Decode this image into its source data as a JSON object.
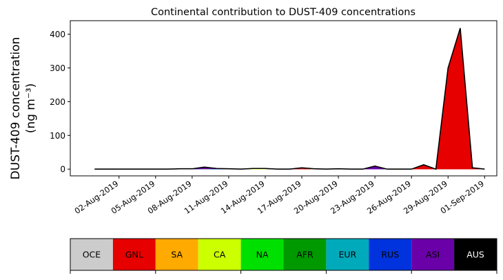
{
  "chart_data": {
    "type": "area",
    "title": "Continental contribution to DUST-409 concentrations",
    "ylabel_line1": "DUST-409 concentration",
    "ylabel_line2": "(ng m⁻³)",
    "xlabel": "",
    "y_range": [
      -20,
      440
    ],
    "x_range": [
      "2019-07-29",
      "2019-09-02"
    ],
    "y_ticks": [
      0,
      100,
      200,
      300,
      400
    ],
    "x_tick_labels": [
      "02-Aug-2019",
      "05-Aug-2019",
      "08-Aug-2019",
      "11-Aug-2019",
      "14-Aug-2019",
      "17-Aug-2019",
      "20-Aug-2019",
      "23-Aug-2019",
      "26-Aug-2019",
      "29-Aug-2019",
      "01-Sep-2019"
    ],
    "x_tick_dates": [
      "2019-08-02",
      "2019-08-05",
      "2019-08-08",
      "2019-08-11",
      "2019-08-14",
      "2019-08-17",
      "2019-08-20",
      "2019-08-23",
      "2019-08-26",
      "2019-08-29",
      "2019-09-01"
    ],
    "grid": false,
    "x": [
      "2019-07-31",
      "2019-08-01",
      "2019-08-02",
      "2019-08-03",
      "2019-08-04",
      "2019-08-05",
      "2019-08-06",
      "2019-08-07",
      "2019-08-08",
      "2019-08-09",
      "2019-08-10",
      "2019-08-11",
      "2019-08-12",
      "2019-08-13",
      "2019-08-14",
      "2019-08-15",
      "2019-08-16",
      "2019-08-17",
      "2019-08-18",
      "2019-08-19",
      "2019-08-20",
      "2019-08-21",
      "2019-08-22",
      "2019-08-23",
      "2019-08-24",
      "2019-08-25",
      "2019-08-26",
      "2019-08-27",
      "2019-08-28",
      "2019-08-29",
      "2019-08-30",
      "2019-08-31",
      "2019-09-01"
    ],
    "series": [
      {
        "name": "OCE",
        "color": "#cccccc",
        "values": [
          0,
          0,
          0,
          0,
          0,
          0,
          0,
          0,
          0,
          0,
          0,
          0,
          0,
          0,
          0,
          0,
          0,
          0,
          0,
          0,
          0,
          0,
          0,
          0,
          0,
          0,
          0,
          0,
          0,
          0,
          0,
          0,
          0
        ]
      },
      {
        "name": "GNL",
        "color": "#e60000",
        "values": [
          0,
          0,
          0,
          0,
          0,
          0,
          0,
          0,
          0,
          1,
          0,
          0,
          0,
          0,
          0,
          0,
          0,
          3,
          0,
          0,
          0,
          0,
          0,
          0,
          0,
          0,
          0,
          12,
          0,
          300,
          418,
          4,
          0
        ]
      },
      {
        "name": "SA",
        "color": "#ffaa00",
        "values": [
          0,
          0,
          0,
          0,
          0,
          0,
          0,
          0,
          0,
          0,
          0,
          0,
          0,
          0,
          0,
          0,
          0,
          0,
          0,
          0,
          0,
          0,
          0,
          0,
          0,
          0,
          0,
          0,
          0,
          0,
          0,
          0,
          0
        ]
      },
      {
        "name": "CA",
        "color": "#ccff00",
        "values": [
          0,
          0,
          0,
          0,
          0,
          0,
          0,
          0,
          0,
          0,
          0,
          0,
          0,
          1,
          1,
          0,
          0,
          0,
          1,
          0,
          1,
          0,
          0,
          0,
          0,
          0,
          0,
          0,
          0,
          0,
          0,
          0,
          0
        ]
      },
      {
        "name": "NA",
        "color": "#00e000",
        "values": [
          0,
          0,
          0,
          0,
          0,
          0,
          0,
          0,
          0,
          0,
          0,
          0,
          0,
          1,
          0,
          0,
          0,
          0,
          0,
          0,
          0,
          0,
          0,
          0,
          0,
          0,
          0,
          0,
          0,
          0,
          0,
          0,
          0
        ]
      },
      {
        "name": "AFR",
        "color": "#009900",
        "values": [
          0,
          0,
          0,
          0,
          0,
          0,
          0,
          0,
          0,
          0,
          0,
          0,
          0,
          0,
          0,
          0,
          0,
          0,
          0,
          0,
          0,
          0,
          0,
          0,
          0,
          0,
          0,
          0,
          0,
          0,
          0,
          0,
          0
        ]
      },
      {
        "name": "EUR",
        "color": "#00aabb",
        "values": [
          0,
          0,
          0,
          0,
          0,
          0,
          0,
          0,
          0,
          0,
          0,
          0,
          0,
          0,
          0,
          0,
          0,
          0,
          0,
          0,
          0,
          0,
          0,
          0,
          0,
          0,
          0,
          0,
          0,
          0,
          0,
          0,
          0
        ]
      },
      {
        "name": "RUS",
        "color": "#0033dd",
        "values": [
          0,
          0,
          0,
          0,
          0,
          0,
          0,
          0,
          0,
          0,
          1,
          0,
          0,
          0,
          0,
          0,
          0,
          0,
          0,
          0,
          0,
          0,
          0,
          0,
          0,
          0,
          0,
          0,
          0,
          0,
          0,
          0,
          0
        ]
      },
      {
        "name": "ASI",
        "color": "#6a00a8",
        "values": [
          0,
          0,
          0,
          0,
          0,
          0,
          0,
          1,
          1,
          5,
          1,
          1,
          0,
          0,
          1,
          0,
          0,
          1,
          0,
          0,
          0,
          0,
          0,
          9,
          0,
          0,
          0,
          1,
          0,
          0,
          0,
          0,
          0
        ]
      },
      {
        "name": "AUS",
        "color": "#000000",
        "values": [
          0,
          0,
          0,
          0,
          0,
          0,
          0,
          0,
          0,
          0,
          0,
          0,
          0,
          0,
          0,
          0,
          0,
          0,
          0,
          0,
          0,
          0,
          0,
          0,
          0,
          0,
          0,
          0,
          0,
          0,
          0,
          0,
          0
        ]
      }
    ],
    "legend": {
      "placement": "bottom",
      "labels": [
        "OCE",
        "GNL",
        "SA",
        "CA",
        "NA",
        "AFR",
        "EUR",
        "RUS",
        "ASI",
        "AUS"
      ],
      "colors": [
        "#cccccc",
        "#e60000",
        "#ffaa00",
        "#ccff00",
        "#00e000",
        "#009900",
        "#00aabb",
        "#0033dd",
        "#6a00a8",
        "#000000"
      ],
      "text_colors": [
        "#000000",
        "#000000",
        "#000000",
        "#000000",
        "#000000",
        "#000000",
        "#000000",
        "#000000",
        "#000000",
        "#ffffff"
      ]
    }
  }
}
